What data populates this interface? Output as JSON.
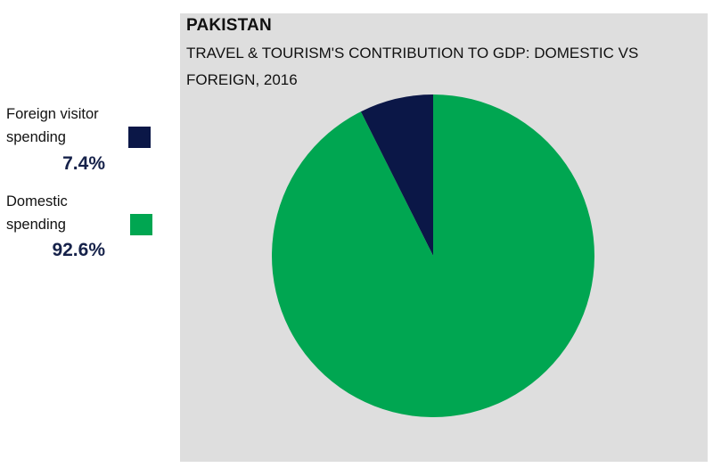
{
  "chart_data": {
    "type": "pie",
    "title": "PAKISTAN",
    "subtitle": "TRAVEL & TOURISM'S CONTRIBUTION TO GDP: DOMESTIC VS FOREIGN, 2016",
    "slices": [
      {
        "name": "Foreign visitor spending",
        "value": 7.4,
        "label": "7.4%",
        "color": "#0b1747"
      },
      {
        "name": "Domestic spending",
        "value": 92.6,
        "label": "92.6%",
        "color": "#00a651"
      }
    ],
    "legend_position": "left"
  },
  "colors": {
    "panel_background": "#dedede"
  }
}
